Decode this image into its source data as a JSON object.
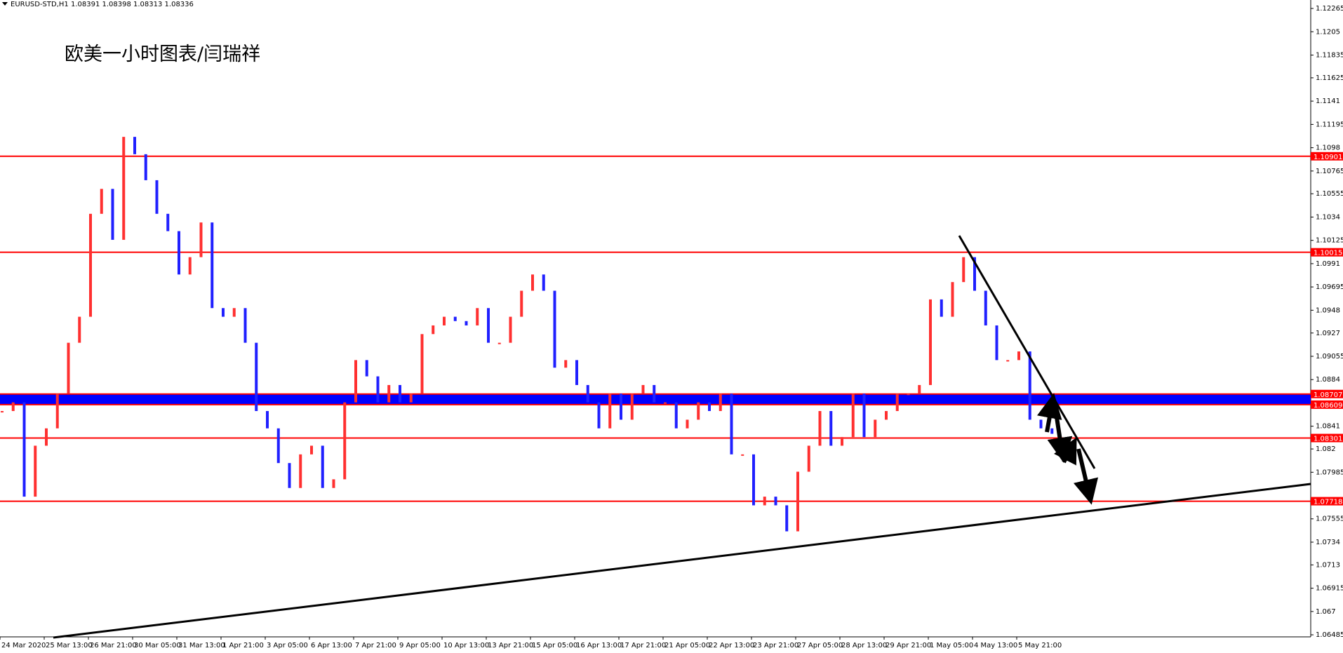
{
  "header": "EURUSD-STD,H1  1.08391 1.08398 1.08313 1.08336",
  "chart_data": {
    "type": "bars",
    "title": "欧美一小时图表/闫瑞祥",
    "categories": [
      "24 Mar 2020",
      null,
      null,
      null,
      "25 Mar 13:00",
      null,
      null,
      null,
      "26 Mar 21:00",
      null,
      null,
      null,
      "30 Mar 05:00",
      null,
      null,
      null,
      "31 Mar 13:00",
      null,
      null,
      null,
      "1 Apr 21:00",
      null,
      null,
      null,
      "3 Apr 05:00",
      null,
      null,
      null,
      "6 Apr 13:00",
      null,
      null,
      null,
      "7 Apr 21:00",
      null,
      null,
      null,
      "9 Apr 05:00",
      null,
      null,
      null,
      "10 Apr 13:00",
      null,
      null,
      null,
      "13 Apr 21:00",
      null,
      null,
      null,
      "15 Apr 05:00",
      null,
      null,
      null,
      "16 Apr 13:00",
      null,
      null,
      null,
      "17 Apr 21:00",
      null,
      null,
      null,
      "21 Apr 05:00",
      null,
      null,
      null,
      "22 Apr 13:00",
      null,
      null,
      null,
      "23 Apr 21:00",
      null,
      null,
      null,
      "27 Apr 05:00",
      null,
      null,
      null,
      "28 Apr 13:00",
      null,
      null,
      null,
      "29 Apr 21:00",
      null,
      null,
      null,
      "1 May 05:00",
      null,
      null,
      null,
      "4 May 13:00",
      null,
      null,
      null,
      "5 May 21:00",
      null,
      null,
      null
    ],
    "values": [
      1.0855,
      1.0863,
      1.0776,
      1.0823,
      1.0839,
      1.0871,
      1.0918,
      1.0942,
      1.1037,
      1.106,
      1.1013,
      1.1108,
      1.1092,
      1.1068,
      1.1037,
      1.1021,
      1.0981,
      1.0997,
      1.1029,
      1.095,
      1.0942,
      1.095,
      1.0918,
      1.0855,
      1.0839,
      1.0807,
      1.0784,
      1.0815,
      1.0823,
      1.0784,
      1.0792,
      1.0863,
      1.0902,
      1.0887,
      1.0863,
      1.0879,
      1.0863,
      1.0871,
      1.0926,
      1.0934,
      1.0942,
      1.0938,
      1.0934,
      1.095,
      1.0918,
      1.0918,
      1.0942,
      1.0966,
      1.0981,
      1.0966,
      1.0895,
      1.0902,
      1.0879,
      1.0863,
      1.0839,
      1.0871,
      1.0847,
      1.0871,
      1.0879,
      1.0863,
      1.0863,
      1.0839,
      1.0847,
      1.0863,
      1.0855,
      1.0871,
      1.0815,
      1.0815,
      1.0768,
      1.0776,
      1.0768,
      1.0744,
      1.0799,
      1.0823,
      1.0855,
      1.0823,
      1.0831,
      1.0871,
      1.0831,
      1.0847,
      1.0855,
      1.0871,
      1.0871,
      1.0879,
      1.0958,
      1.0942,
      1.0974,
      1.0997,
      1.0966,
      1.0934,
      1.0902,
      1.0902,
      1.091,
      1.0847,
      1.0839,
      1.0834
    ],
    "up_color": "#ff3030",
    "down_color": "#2020ff",
    "ylim": [
      1.06466,
      1.12343
    ],
    "yticks": [
      1.12265,
      1.1205,
      1.11835,
      1.11625,
      1.1141,
      1.11195,
      1.1098,
      1.10765,
      1.10555,
      1.1034,
      1.10125,
      1.0991,
      1.09695,
      1.0948,
      1.0927,
      1.09055,
      1.0884,
      1.0841,
      1.082,
      1.07985,
      1.07555,
      1.0734,
      1.0713,
      1.06915,
      1.067,
      1.06485
    ],
    "levels": [
      1.10901,
      1.10015,
      1.08707,
      1.08609,
      1.08301,
      1.07718
    ],
    "level_color": "#ff0000",
    "zone_color": "#0000ff"
  }
}
